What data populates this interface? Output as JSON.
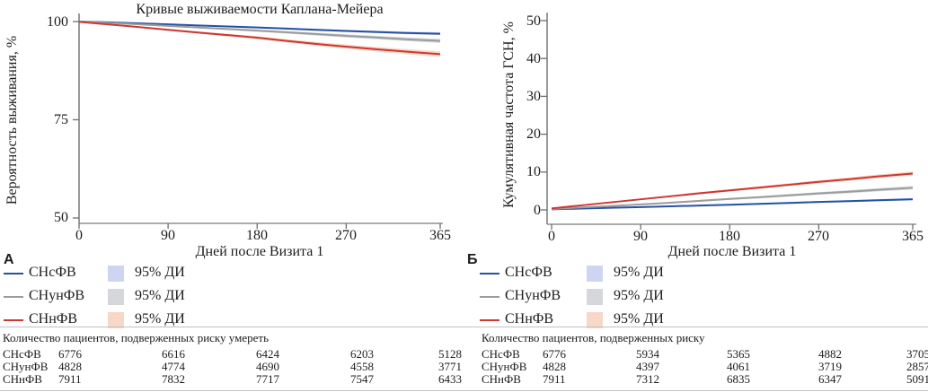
{
  "colors": {
    "snsfv_line": "#2551a4",
    "snunfv_line": "#9c9c9c",
    "snnfv_line": "#cd3733",
    "snsfv_ci": "#ced5f0",
    "snunfv_ci": "#d5d7dc",
    "snnfv_ci": "#f7d8c6",
    "axis": "#6e6e6e",
    "x_axis": "#8f8f8f"
  },
  "chart_data": [
    {
      "type": "line",
      "panel_label": "А",
      "title": "Кривые выживаемости Каплана-Мейера",
      "xlabel": "Дней после Визита 1",
      "ylabel": "Вероятность выживания, %",
      "xlim": [
        0,
        365
      ],
      "ylim": [
        50,
        100
      ],
      "xticks": [
        0,
        90,
        180,
        270,
        365
      ],
      "yticks": [
        100,
        75,
        50
      ],
      "grid": false,
      "legend_position": "below-left",
      "x": [
        0,
        30,
        60,
        90,
        120,
        150,
        180,
        210,
        240,
        270,
        300,
        330,
        365
      ],
      "series": [
        {
          "name": "СНсФВ",
          "color": "#2551a4",
          "ci_label": "95% ДИ",
          "ci_color": "#ced5f0",
          "ci_halfwidth_end": 0.35,
          "values": [
            100,
            99.8,
            99.55,
            99.3,
            99.0,
            98.75,
            98.5,
            98.2,
            97.9,
            97.6,
            97.35,
            97.1,
            96.9
          ]
        },
        {
          "name": "СНунФВ",
          "color": "#9c9c9c",
          "ci_label": "95% ДИ",
          "ci_color": "#d5d7dc",
          "ci_halfwidth_end": 0.5,
          "values": [
            100,
            99.65,
            99.3,
            98.9,
            98.5,
            98.1,
            97.7,
            97.25,
            96.8,
            96.35,
            95.95,
            95.5,
            95.05
          ]
        },
        {
          "name": "СНнФВ",
          "color": "#cd3733",
          "ci_label": "95% ДИ",
          "ci_color": "#f7d8c6",
          "ci_halfwidth_end": 0.7,
          "values": [
            99.9,
            99.25,
            98.6,
            97.9,
            97.2,
            96.55,
            95.9,
            95.05,
            94.3,
            93.6,
            92.95,
            92.35,
            91.7
          ]
        }
      ],
      "risk_table": {
        "title": "Количество пациентов, подверженных риску умереть",
        "rows": [
          {
            "label": "СНсФВ",
            "values": [
              "6776",
              "6616",
              "6424",
              "6203",
              "5128"
            ]
          },
          {
            "label": "СНунФВ",
            "values": [
              "4828",
              "4774",
              "4690",
              "4558",
              "3771"
            ]
          },
          {
            "label": "СНнФВ",
            "values": [
              "7911",
              "7832",
              "7717",
              "7547",
              "6433"
            ]
          }
        ]
      }
    },
    {
      "type": "line",
      "panel_label": "Б",
      "title": "",
      "xlabel": "Дней после Визита 1",
      "ylabel": "Кумулятивная частота ГСН, %",
      "xlim": [
        0,
        365
      ],
      "ylim": [
        0,
        50
      ],
      "xticks": [
        0,
        90,
        180,
        270,
        365
      ],
      "yticks": [
        50,
        40,
        30,
        20,
        10,
        0
      ],
      "grid": false,
      "legend_position": "below-left",
      "x": [
        0,
        30,
        60,
        90,
        120,
        150,
        180,
        210,
        240,
        270,
        300,
        330,
        365
      ],
      "series": [
        {
          "name": "СНсФВ",
          "color": "#2551a4",
          "ci_label": "95% ДИ",
          "ci_color": "#ced5f0",
          "ci_halfwidth_end": 0.3,
          "values": [
            0.15,
            0.35,
            0.55,
            0.75,
            0.95,
            1.15,
            1.35,
            1.6,
            1.85,
            2.1,
            2.3,
            2.55,
            2.8
          ]
        },
        {
          "name": "СНунФВ",
          "color": "#9c9c9c",
          "ci_label": "95% ДИ",
          "ci_color": "#d5d7dc",
          "ci_halfwidth_end": 0.45,
          "values": [
            0.25,
            0.65,
            1.05,
            1.45,
            1.9,
            2.4,
            2.9,
            3.35,
            3.85,
            4.35,
            4.8,
            5.3,
            5.85
          ]
        },
        {
          "name": "СНнФВ",
          "color": "#cd3733",
          "ci_label": "95% ДИ",
          "ci_color": "#f7d8c6",
          "ci_halfwidth_end": 0.55,
          "values": [
            0.4,
            1.2,
            2.0,
            2.8,
            3.6,
            4.4,
            5.15,
            5.9,
            6.65,
            7.4,
            8.1,
            8.85,
            9.6
          ]
        }
      ],
      "risk_table": {
        "title": "Количество пациентов, подверженных риску",
        "rows": [
          {
            "label": "СНсФВ",
            "values": [
              "6776",
              "5934",
              "5365",
              "4882",
              "3705"
            ]
          },
          {
            "label": "СНунФВ",
            "values": [
              "4828",
              "4397",
              "4061",
              "3719",
              "2857"
            ]
          },
          {
            "label": "СНнФВ",
            "values": [
              "7911",
              "7312",
              "6835",
              "6347",
              "5091"
            ]
          }
        ]
      }
    }
  ]
}
